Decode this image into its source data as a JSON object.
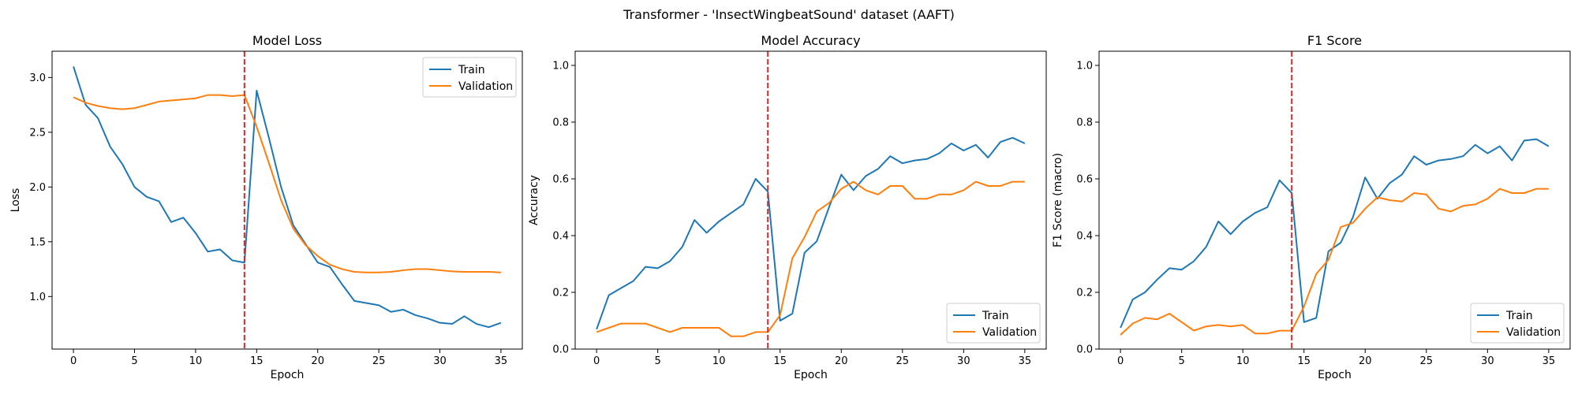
{
  "suptitle": "Transformer - 'InsectWingbeatSound' dataset (AAFT)",
  "colors": {
    "train": "#1f77b4",
    "validation": "#ff7f0e",
    "marker": "#d62728"
  },
  "chart_data": [
    {
      "type": "line",
      "title": "Model Loss",
      "xlabel": "Epoch",
      "ylabel": "Loss",
      "xlim": [
        -1.75,
        36.75
      ],
      "ylim": [
        0.52,
        3.24
      ],
      "xticks": [
        0,
        5,
        10,
        15,
        20,
        25,
        30,
        35
      ],
      "yticks": [
        1.0,
        1.5,
        2.0,
        2.5,
        3.0
      ],
      "ytick_labels": [
        "1.0",
        "1.5",
        "2.0",
        "2.5",
        "3.0"
      ],
      "vline_x": 14,
      "legend_loc": "upper right",
      "x": [
        0,
        1,
        2,
        3,
        4,
        5,
        6,
        7,
        8,
        9,
        10,
        11,
        12,
        13,
        14,
        15,
        16,
        17,
        18,
        19,
        20,
        21,
        22,
        23,
        24,
        25,
        26,
        27,
        28,
        29,
        30,
        31,
        32,
        33,
        34,
        35
      ],
      "series": [
        {
          "name": "Train",
          "color_key": "train",
          "values": [
            3.1,
            2.75,
            2.63,
            2.37,
            2.21,
            2.0,
            1.91,
            1.87,
            1.68,
            1.72,
            1.58,
            1.41,
            1.43,
            1.33,
            1.31,
            2.88,
            2.45,
            2.0,
            1.65,
            1.48,
            1.31,
            1.27,
            1.11,
            0.96,
            0.94,
            0.92,
            0.86,
            0.88,
            0.83,
            0.8,
            0.76,
            0.75,
            0.82,
            0.75,
            0.72,
            0.76
          ]
        },
        {
          "name": "Validation",
          "color_key": "validation",
          "values": [
            2.82,
            2.77,
            2.74,
            2.72,
            2.71,
            2.72,
            2.75,
            2.78,
            2.79,
            2.8,
            2.81,
            2.84,
            2.84,
            2.83,
            2.84,
            2.55,
            2.22,
            1.88,
            1.62,
            1.47,
            1.37,
            1.29,
            1.25,
            1.225,
            1.22,
            1.22,
            1.225,
            1.24,
            1.25,
            1.25,
            1.24,
            1.23,
            1.225,
            1.225,
            1.225,
            1.22
          ]
        }
      ]
    },
    {
      "type": "line",
      "title": "Model Accuracy",
      "xlabel": "Epoch",
      "ylabel": "Accuracy",
      "xlim": [
        -1.75,
        36.75
      ],
      "ylim": [
        0.0,
        1.05
      ],
      "xticks": [
        0,
        5,
        10,
        15,
        20,
        25,
        30,
        35
      ],
      "yticks": [
        0.0,
        0.2,
        0.4,
        0.6,
        0.8,
        1.0
      ],
      "ytick_labels": [
        "0.0",
        "0.2",
        "0.4",
        "0.6",
        "0.8",
        "1.0"
      ],
      "vline_x": 14,
      "legend_loc": "lower right",
      "x": [
        0,
        1,
        2,
        3,
        4,
        5,
        6,
        7,
        8,
        9,
        10,
        11,
        12,
        13,
        14,
        15,
        16,
        17,
        18,
        19,
        20,
        21,
        22,
        23,
        24,
        25,
        26,
        27,
        28,
        29,
        30,
        31,
        32,
        33,
        34,
        35
      ],
      "series": [
        {
          "name": "Train",
          "color_key": "train",
          "values": [
            0.07,
            0.19,
            0.215,
            0.24,
            0.29,
            0.285,
            0.31,
            0.36,
            0.455,
            0.41,
            0.45,
            0.48,
            0.51,
            0.6,
            0.555,
            0.1,
            0.125,
            0.34,
            0.38,
            0.5,
            0.615,
            0.56,
            0.61,
            0.635,
            0.68,
            0.655,
            0.665,
            0.67,
            0.69,
            0.725,
            0.7,
            0.72,
            0.675,
            0.73,
            0.745,
            0.725
          ]
        },
        {
          "name": "Validation",
          "color_key": "validation",
          "values": [
            0.06,
            0.075,
            0.09,
            0.09,
            0.09,
            0.075,
            0.06,
            0.075,
            0.075,
            0.075,
            0.075,
            0.045,
            0.045,
            0.06,
            0.06,
            0.12,
            0.32,
            0.395,
            0.485,
            0.515,
            0.565,
            0.59,
            0.56,
            0.545,
            0.575,
            0.575,
            0.53,
            0.53,
            0.545,
            0.545,
            0.56,
            0.59,
            0.575,
            0.575,
            0.59,
            0.59
          ]
        }
      ]
    },
    {
      "type": "line",
      "title": "F1 Score",
      "xlabel": "Epoch",
      "ylabel": "F1 Score (macro)",
      "xlim": [
        -1.75,
        36.75
      ],
      "ylim": [
        0.0,
        1.05
      ],
      "xticks": [
        0,
        5,
        10,
        15,
        20,
        25,
        30,
        35
      ],
      "yticks": [
        0.0,
        0.2,
        0.4,
        0.6,
        0.8,
        1.0
      ],
      "ytick_labels": [
        "0.0",
        "0.2",
        "0.4",
        "0.6",
        "0.8",
        "1.0"
      ],
      "vline_x": 14,
      "legend_loc": "lower right",
      "x": [
        0,
        1,
        2,
        3,
        4,
        5,
        6,
        7,
        8,
        9,
        10,
        11,
        12,
        13,
        14,
        15,
        16,
        17,
        18,
        19,
        20,
        21,
        22,
        23,
        24,
        25,
        26,
        27,
        28,
        29,
        30,
        31,
        32,
        33,
        34,
        35
      ],
      "series": [
        {
          "name": "Train",
          "color_key": "train",
          "values": [
            0.075,
            0.175,
            0.2,
            0.245,
            0.285,
            0.28,
            0.31,
            0.36,
            0.45,
            0.405,
            0.45,
            0.48,
            0.5,
            0.595,
            0.55,
            0.095,
            0.11,
            0.345,
            0.375,
            0.465,
            0.605,
            0.53,
            0.585,
            0.615,
            0.68,
            0.65,
            0.665,
            0.67,
            0.68,
            0.72,
            0.69,
            0.715,
            0.665,
            0.735,
            0.74,
            0.715
          ]
        },
        {
          "name": "Validation",
          "color_key": "validation",
          "values": [
            0.05,
            0.09,
            0.11,
            0.105,
            0.125,
            0.095,
            0.065,
            0.08,
            0.085,
            0.08,
            0.085,
            0.055,
            0.055,
            0.065,
            0.065,
            0.15,
            0.265,
            0.315,
            0.43,
            0.445,
            0.495,
            0.535,
            0.525,
            0.52,
            0.55,
            0.545,
            0.495,
            0.485,
            0.505,
            0.51,
            0.53,
            0.565,
            0.55,
            0.55,
            0.565,
            0.565
          ]
        }
      ]
    }
  ]
}
